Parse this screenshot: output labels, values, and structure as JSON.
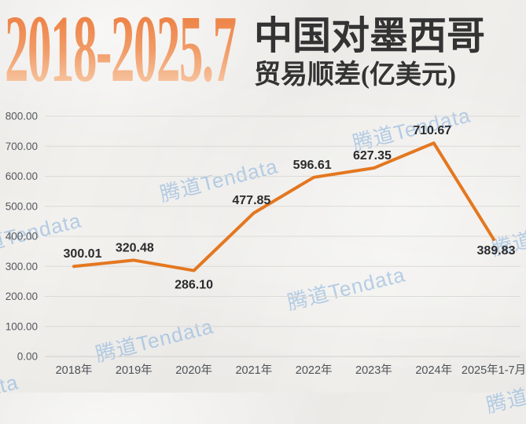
{
  "header": {
    "years": "2018-2025.7",
    "title_line1": "中国对墨西哥",
    "title_line2": "贸易顺差",
    "title_unit": "(亿美元)"
  },
  "watermark": {
    "text": "腾道Tendata"
  },
  "chart_data": {
    "type": "line",
    "title": "2018-2025.7 中国对墨西哥贸易顺差(亿美元)",
    "categories": [
      "2018年",
      "2019年",
      "2020年",
      "2021年",
      "2022年",
      "2023年",
      "2024年",
      "2025年1-7月"
    ],
    "values": [
      300.01,
      320.48,
      286.1,
      477.85,
      596.61,
      627.35,
      710.67,
      389.83
    ],
    "value_labels": [
      "300.01",
      "320.48",
      "286.10",
      "477.85",
      "596.61",
      "627.35",
      "710.67",
      "389.83"
    ],
    "label_positions": [
      "above",
      "above",
      "below",
      "above",
      "above",
      "above",
      "above",
      "below"
    ],
    "y_ticks": [
      "800.00",
      "700.00",
      "600.00",
      "500.00",
      "400.00",
      "300.00",
      "200.00",
      "100.00",
      "0.00"
    ],
    "y_tick_values": [
      800,
      700,
      600,
      500,
      400,
      300,
      200,
      100,
      0
    ],
    "ylim": [
      0,
      800
    ],
    "xlabel": "",
    "ylabel": "",
    "grid": true,
    "legend": "none",
    "line_color": "#e4771f"
  },
  "colors": {
    "accent_orange": "#ed7a1e",
    "title_gradient_top": "#ed7c3e",
    "title_gradient_bottom": "#f9d3b3",
    "dark_text": "#333333",
    "data_label_text": "#2b2b2d",
    "axis_text": "#55585d",
    "grid_line": "#dbdad6",
    "zero_line": "#cfcecb",
    "watermark_blue": "#8bb2de",
    "background": "#f2f1ee"
  }
}
